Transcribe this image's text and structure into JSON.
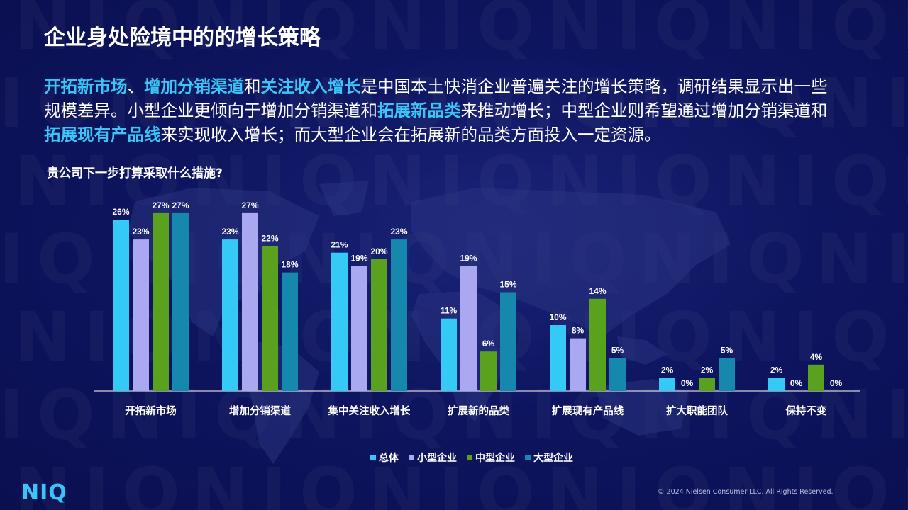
{
  "slide": {
    "title": "企业身处险境中的的增长策略",
    "question": "贵公司下一步打算采取什么措施?",
    "intro": {
      "s1": "开拓新市场",
      "s2": "、",
      "s3": "增加分销渠道",
      "s4": "和",
      "s5": "关注收入增长",
      "s6": "是中国本土快消企业普遍关注的增长策略，调研结果显示出一些规模差异。小型企业更倾向于增加分销渠道和",
      "s7": "拓展新品类",
      "s8": "来推动增长；中型企业则希望通过增加分销渠道和",
      "s9": "拓展现有产品线",
      "s10": "来实现收入增长；而大型企业会在拓展新的品类方面投入一定资源。"
    },
    "highlight_color": "#3bc4f5",
    "watermark": "NIQ"
  },
  "chart_data": {
    "type": "bar",
    "categories": [
      "开拓新市场",
      "增加分销渠道",
      "集中关注收入增长",
      "扩展新的品类",
      "扩展现有产品线",
      "扩大职能团队",
      "保持不变"
    ],
    "series": [
      {
        "name": "总体",
        "color": "#35c9f5",
        "values": [
          26,
          23,
          21,
          11,
          10,
          2,
          2
        ]
      },
      {
        "name": "小型企业",
        "color": "#a9a8f0",
        "values": [
          23,
          27,
          19,
          19,
          8,
          0,
          0
        ]
      },
      {
        "name": "中型企业",
        "color": "#5aa11e",
        "values": [
          27,
          22,
          20,
          6,
          14,
          2,
          4
        ]
      },
      {
        "name": "大型企业",
        "color": "#1688ad",
        "values": [
          27,
          18,
          23,
          15,
          5,
          5,
          0
        ]
      }
    ],
    "value_suffix": "%",
    "ylim": [
      0,
      27
    ],
    "grid": false,
    "legend": "bottom-center"
  },
  "footer": {
    "logo": "NIQ",
    "copyright": "© 2024 Nielsen Consumer LLC. All Rights Reserved."
  }
}
